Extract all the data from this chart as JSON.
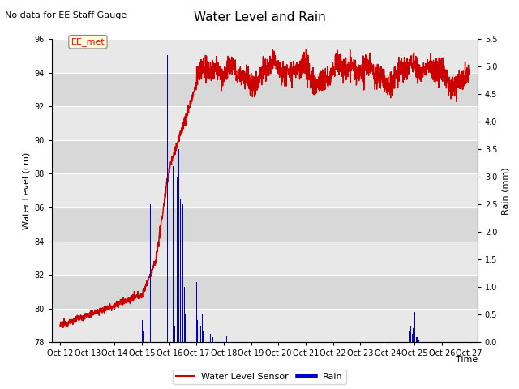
{
  "title": "Water Level and Rain",
  "subtitle": "No data for EE Staff Gauge",
  "xlabel": "Time",
  "ylabel_left": "Water Level (cm)",
  "ylabel_right": "Rain (mm)",
  "ylim_left": [
    78,
    96
  ],
  "ylim_right": [
    0.0,
    5.5
  ],
  "yticks_left": [
    78,
    80,
    82,
    84,
    86,
    88,
    90,
    92,
    94,
    96
  ],
  "yticks_right": [
    0.0,
    0.5,
    1.0,
    1.5,
    2.0,
    2.5,
    3.0,
    3.5,
    4.0,
    4.5,
    5.0,
    5.5
  ],
  "xtick_labels": [
    "Oct 12",
    "Oct 13",
    "Oct 14",
    "Oct 15",
    "Oct 16",
    "Oct 17",
    "Oct 18",
    "Oct 19",
    "Oct 20",
    "Oct 21",
    "Oct 22",
    "Oct 23",
    "Oct 24",
    "Oct 25",
    "Oct 26",
    "Oct 27"
  ],
  "water_color": "#cc0000",
  "rain_color": "#0000cc",
  "legend_label_water": "Water Level Sensor",
  "legend_label_rain": "Rain",
  "annotation_text": "EE_met",
  "band_colors": [
    "#e8e8e8",
    "#d8d8d8"
  ],
  "grid_color": "#ffffff"
}
